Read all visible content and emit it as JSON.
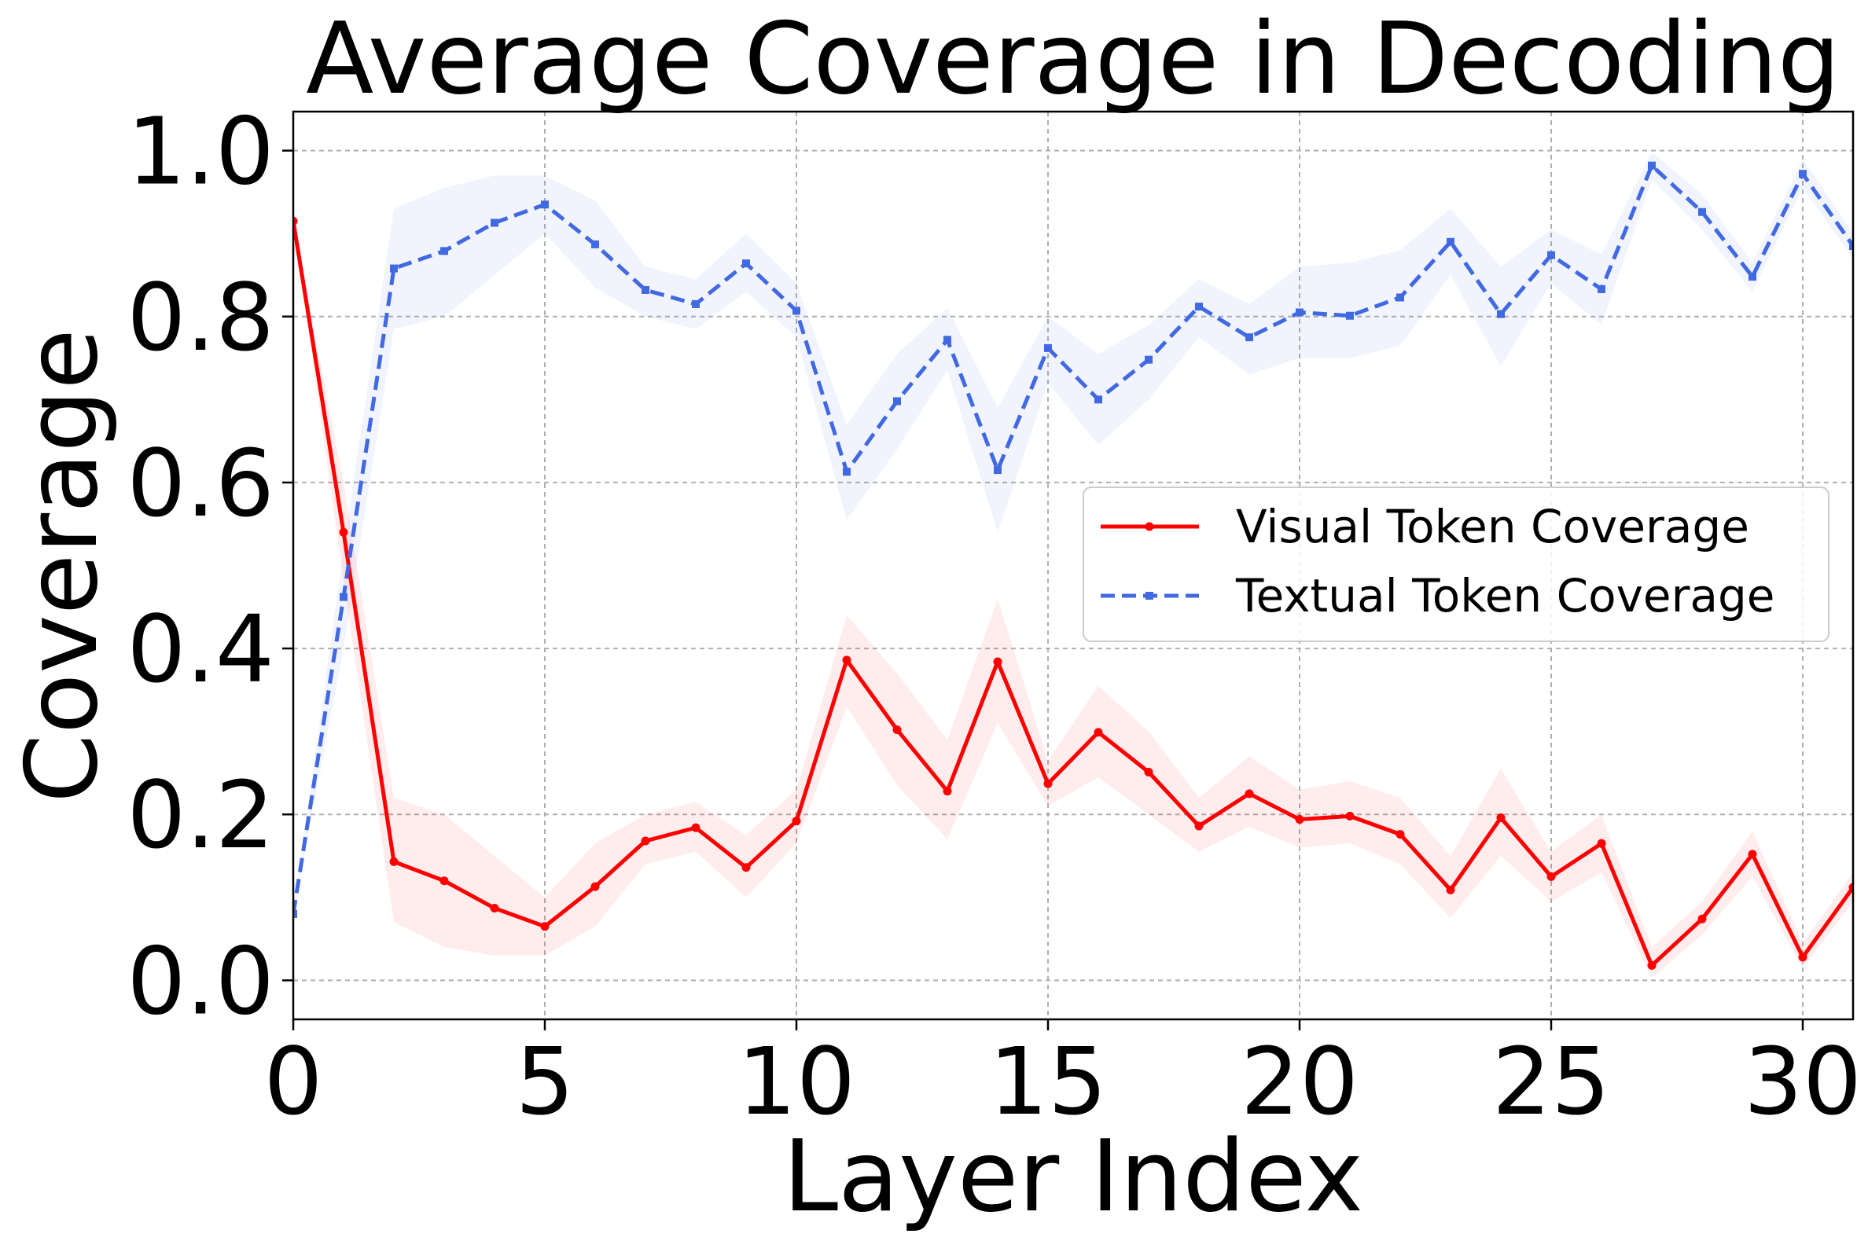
{
  "chart_data": {
    "type": "line",
    "title": "Average Coverage in Decoding",
    "xlabel": "Layer Index",
    "ylabel": "Coverage",
    "xlim": [
      0,
      31
    ],
    "ylim": [
      -0.047,
      1.047
    ],
    "xticks": [
      0,
      5,
      10,
      15,
      20,
      25,
      30
    ],
    "xtick_labels": [
      "0",
      "5",
      "10",
      "15",
      "20",
      "25",
      "30"
    ],
    "yticks": [
      0.0,
      0.2,
      0.4,
      0.6,
      0.8,
      1.0
    ],
    "ytick_labels": [
      "0.0",
      "0.2",
      "0.4",
      "0.6",
      "0.8",
      "1.0"
    ],
    "grid": true,
    "legend_position": "center-right",
    "x": [
      0,
      1,
      2,
      3,
      4,
      5,
      6,
      7,
      8,
      9,
      10,
      11,
      12,
      13,
      14,
      15,
      16,
      17,
      18,
      19,
      20,
      21,
      22,
      23,
      24,
      25,
      26,
      27,
      28,
      29,
      30,
      31
    ],
    "series": [
      {
        "name": "Visual Token Coverage",
        "color": "#ff0000",
        "line_style": "solid",
        "marker": "circle",
        "values": [
          0.915,
          0.54,
          0.143,
          0.12,
          0.087,
          0.065,
          0.113,
          0.168,
          0.184,
          0.136,
          0.192,
          0.386,
          0.302,
          0.228,
          0.384,
          0.237,
          0.299,
          0.251,
          0.186,
          0.225,
          0.194,
          0.198,
          0.176,
          0.109,
          0.196,
          0.125,
          0.165,
          0.018,
          0.074,
          0.152,
          0.028,
          0.112
        ],
        "band_lower": [
          0.915,
          0.48,
          0.07,
          0.04,
          0.03,
          0.03,
          0.065,
          0.14,
          0.155,
          0.1,
          0.165,
          0.33,
          0.235,
          0.17,
          0.31,
          0.21,
          0.245,
          0.2,
          0.155,
          0.185,
          0.16,
          0.165,
          0.14,
          0.075,
          0.15,
          0.095,
          0.13,
          0.003,
          0.055,
          0.125,
          0.015,
          0.095
        ],
        "band_upper": [
          0.915,
          0.6,
          0.22,
          0.2,
          0.15,
          0.1,
          0.165,
          0.2,
          0.215,
          0.175,
          0.23,
          0.44,
          0.37,
          0.29,
          0.46,
          0.265,
          0.355,
          0.3,
          0.22,
          0.27,
          0.23,
          0.24,
          0.22,
          0.15,
          0.255,
          0.155,
          0.2,
          0.04,
          0.095,
          0.18,
          0.045,
          0.13
        ],
        "band_color": "#ff0000"
      },
      {
        "name": "Textual Token Coverage",
        "color": "#4169e1",
        "line_style": "dashed",
        "marker": "square",
        "values": [
          0.08,
          0.462,
          0.858,
          0.879,
          0.913,
          0.935,
          0.887,
          0.832,
          0.815,
          0.864,
          0.807,
          0.613,
          0.698,
          0.772,
          0.615,
          0.762,
          0.7,
          0.748,
          0.812,
          0.775,
          0.805,
          0.801,
          0.823,
          0.89,
          0.803,
          0.874,
          0.833,
          0.982,
          0.926,
          0.848,
          0.972,
          0.885
        ],
        "band_lower": [
          0.08,
          0.4,
          0.785,
          0.8,
          0.85,
          0.9,
          0.835,
          0.8,
          0.785,
          0.83,
          0.775,
          0.555,
          0.64,
          0.735,
          0.54,
          0.72,
          0.645,
          0.7,
          0.775,
          0.73,
          0.75,
          0.75,
          0.765,
          0.85,
          0.74,
          0.84,
          0.79,
          0.965,
          0.905,
          0.83,
          0.955,
          0.87
        ],
        "band_upper": [
          0.08,
          0.52,
          0.93,
          0.955,
          0.97,
          0.97,
          0.94,
          0.86,
          0.845,
          0.9,
          0.84,
          0.67,
          0.755,
          0.81,
          0.69,
          0.8,
          0.755,
          0.79,
          0.845,
          0.815,
          0.86,
          0.865,
          0.88,
          0.93,
          0.86,
          0.905,
          0.875,
          0.998,
          0.947,
          0.865,
          0.99,
          0.9
        ],
        "band_color": "#4169e1"
      }
    ]
  }
}
